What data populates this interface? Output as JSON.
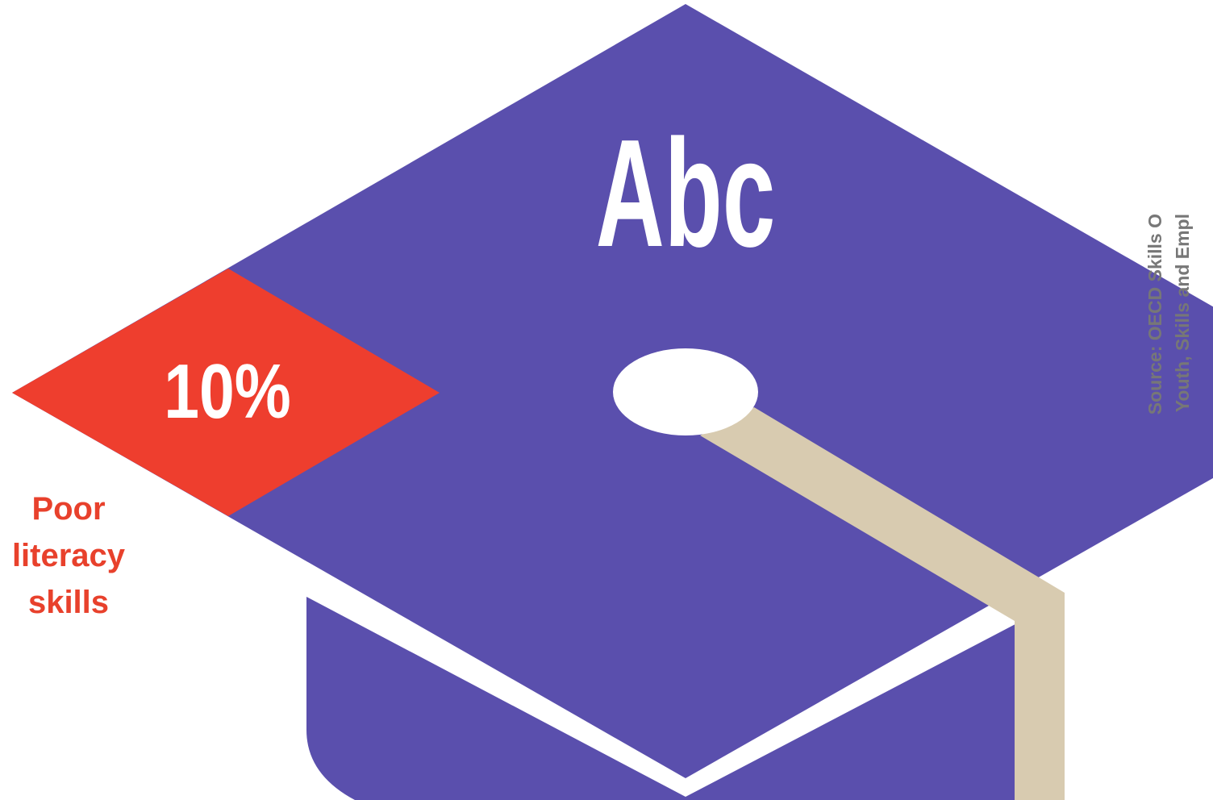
{
  "graphic": {
    "title": "Abc",
    "highlight": {
      "value_label": "10%",
      "label_lines": [
        "Poor",
        "literacy",
        "skills"
      ]
    },
    "source_lines": [
      "Source: OECD Skills O",
      "Youth, Skills and Empl"
    ]
  }
}
